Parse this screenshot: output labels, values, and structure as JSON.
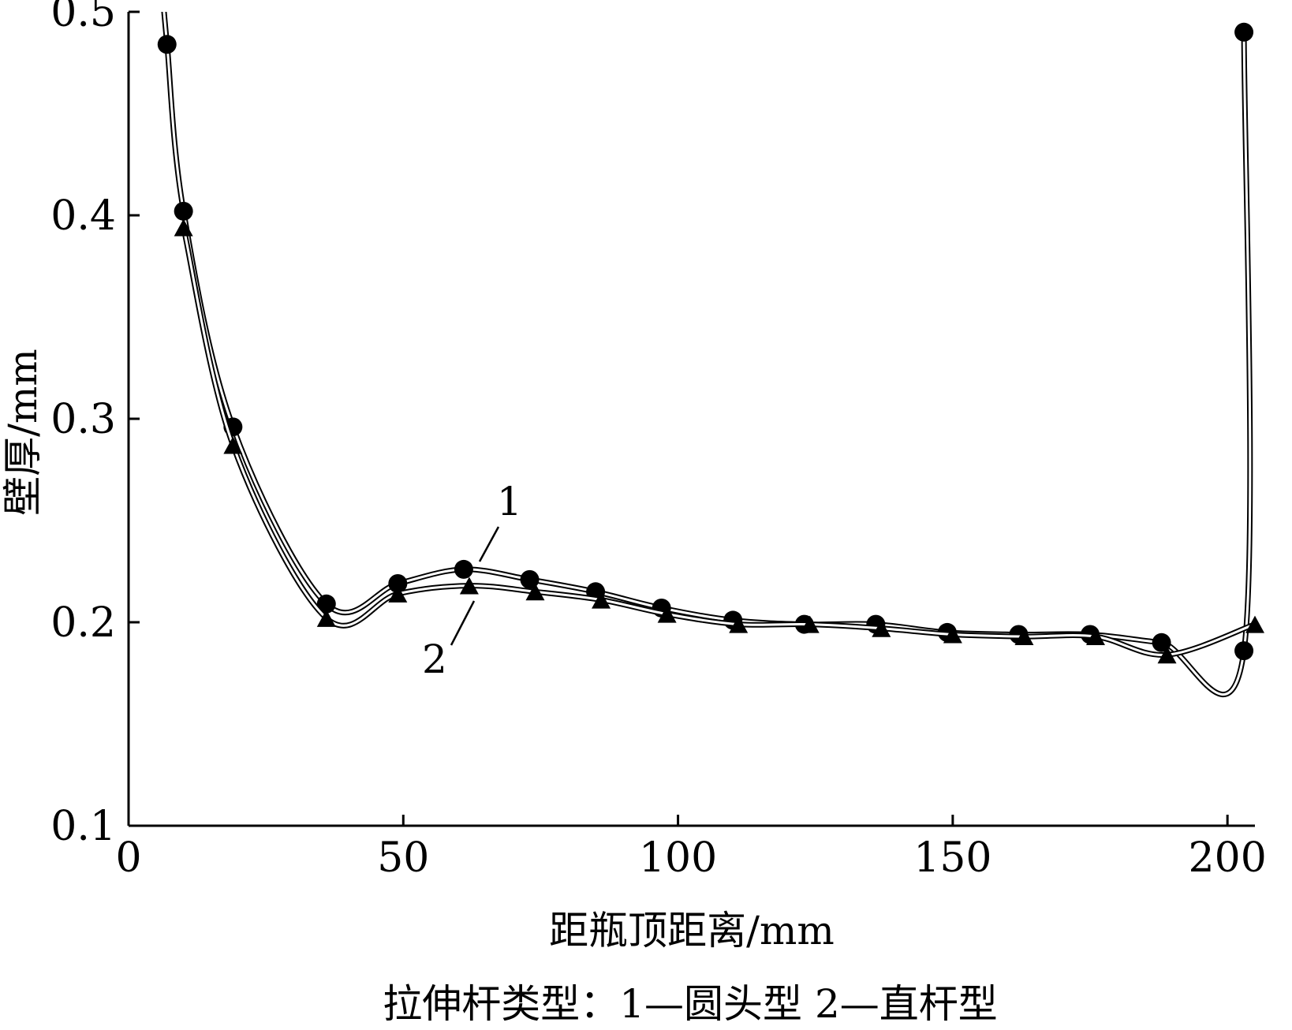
{
  "chart_data": {
    "type": "line",
    "xlabel": "距瓶顶距离/mm",
    "ylabel": "壁厚/mm",
    "caption": "拉伸杆类型：1—圆头型   2—直杆型",
    "xlim": [
      0,
      205
    ],
    "ylim": [
      0.1,
      0.5
    ],
    "xticks": [
      "0",
      "50",
      "100",
      "150",
      "200"
    ],
    "yticks": [
      "0.1",
      "0.2",
      "0.3",
      "0.4",
      "0.5"
    ],
    "grid": false,
    "legend": "none",
    "series": [
      {
        "name": "1",
        "marker": "circle",
        "color": "#000000",
        "x": [
          7,
          10,
          19,
          36,
          49,
          61,
          73,
          85,
          97,
          110,
          123,
          136,
          149,
          162,
          175,
          188,
          203,
          203
        ],
        "y": [
          0.484,
          0.402,
          0.296,
          0.209,
          0.219,
          0.226,
          0.221,
          0.215,
          0.207,
          0.201,
          0.199,
          0.199,
          0.195,
          0.194,
          0.194,
          0.19,
          0.186,
          0.49
        ]
      },
      {
        "name": "2",
        "marker": "triangle",
        "color": "#000000",
        "x": [
          10,
          19,
          36,
          49,
          62,
          74,
          86,
          98,
          111,
          124,
          137,
          150,
          163,
          176,
          189,
          205
        ],
        "y": [
          0.394,
          0.287,
          0.202,
          0.214,
          0.218,
          0.215,
          0.211,
          0.204,
          0.199,
          0.199,
          0.197,
          0.194,
          0.193,
          0.193,
          0.184,
          0.199
        ]
      }
    ],
    "annotations": [
      "1",
      "2"
    ]
  }
}
